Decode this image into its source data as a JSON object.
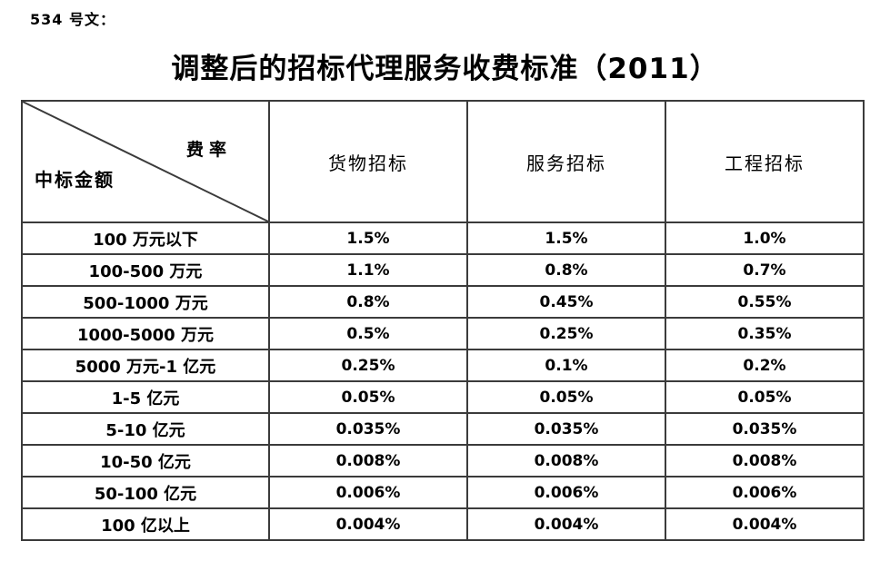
{
  "page": {
    "doc_number": "534 号文：",
    "title": "调整后的招标代理服务收费标准（2011）"
  },
  "table": {
    "corner": {
      "fee_rate_label": "费率",
      "amount_label": "中标金额"
    },
    "columns": [
      "货物招标",
      "服务招标",
      "工程招标"
    ],
    "rows": [
      {
        "amount": "100 万元以下",
        "values": [
          "1.5%",
          "1.5%",
          "1.0%"
        ]
      },
      {
        "amount": "100-500 万元",
        "values": [
          "1.1%",
          "0.8%",
          "0.7%"
        ]
      },
      {
        "amount": "500-1000 万元",
        "values": [
          "0.8%",
          "0.45%",
          "0.55%"
        ]
      },
      {
        "amount": "1000-5000 万元",
        "values": [
          "0.5%",
          "0.25%",
          "0.35%"
        ]
      },
      {
        "amount": "5000 万元-1 亿元",
        "values": [
          "0.25%",
          "0.1%",
          "0.2%"
        ]
      },
      {
        "amount": "1-5 亿元",
        "values": [
          "0.05%",
          "0.05%",
          "0.05%"
        ]
      },
      {
        "amount": "5-10 亿元",
        "values": [
          "0.035%",
          "0.035%",
          "0.035%"
        ]
      },
      {
        "amount": "10-50 亿元",
        "values": [
          "0.008%",
          "0.008%",
          "0.008%"
        ]
      },
      {
        "amount": "50-100 亿元",
        "values": [
          "0.006%",
          "0.006%",
          "0.006%"
        ]
      },
      {
        "amount": "100 亿以上",
        "values": [
          "0.004%",
          "0.004%",
          "0.004%"
        ]
      }
    ],
    "border_color": "#3b3b3b"
  }
}
